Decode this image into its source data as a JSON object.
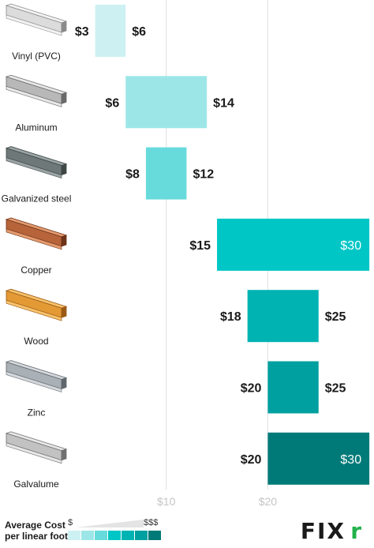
{
  "chart_data": {
    "type": "bar",
    "subtype": "floating-range",
    "categories": [
      "Vinyl (PVC)",
      "Aluminum",
      "Galvanized steel",
      "Copper",
      "Wood",
      "Zinc",
      "Galvalume"
    ],
    "series": [
      {
        "low": [
          3,
          6,
          8,
          15,
          18,
          20,
          20
        ],
        "high": [
          6,
          14,
          12,
          30,
          25,
          25,
          30
        ],
        "low_labels": [
          "$3",
          "$6",
          "$8",
          "$15",
          "$18",
          "$20",
          "$20"
        ],
        "high_labels": [
          "$6",
          "$14",
          "$12",
          "$30",
          "$25",
          "$25",
          "$30"
        ]
      }
    ],
    "bar_colors": [
      "#cdf1f2",
      "#9de6e7",
      "#67dbdc",
      "#00c6c6",
      "#00b3b3",
      "#00a0a0",
      "#007a78"
    ],
    "high_label_inside": [
      false,
      false,
      false,
      true,
      false,
      false,
      true
    ],
    "xlim": [
      -6.3,
      30
    ],
    "xticks": [
      10,
      20
    ],
    "xtick_labels": [
      "$10",
      "$20"
    ],
    "grid": true,
    "orientation": "horizontal"
  },
  "legend": {
    "title": "Average Cost per linear foot",
    "low_label": "$",
    "high_label": "$$$",
    "swatch_colors": [
      "#cdf1f2",
      "#9de6e7",
      "#67dbdc",
      "#00c6c6",
      "#00b3b3",
      "#00a0a0",
      "#007a78"
    ]
  },
  "logo": {
    "text": "FIX",
    "mark": "r"
  },
  "icons": [
    "vinyl-gutter-icon",
    "aluminum-gutter-icon",
    "galvanized-steel-gutter-icon",
    "copper-gutter-icon",
    "wood-gutter-icon",
    "zinc-gutter-icon",
    "galvalume-gutter-icon"
  ],
  "gutter_colors": [
    {
      "light": "#f2f2f2",
      "mid": "#dcdcdc",
      "dark": "#8a8a8a"
    },
    {
      "light": "#e8e8e8",
      "mid": "#b8b8b8",
      "dark": "#6a6a6a"
    },
    {
      "light": "#9aa3a3",
      "mid": "#6e7878",
      "dark": "#3f4646"
    },
    {
      "light": "#e39a6e",
      "mid": "#b8643a",
      "dark": "#6e3318"
    },
    {
      "light": "#f7c26a",
      "mid": "#e39a35",
      "dark": "#9a5a14"
    },
    {
      "light": "#d4d8dc",
      "mid": "#a9b0b6",
      "dark": "#5f666c"
    },
    {
      "light": "#e6e6e6",
      "mid": "#c2c2c2",
      "dark": "#707070"
    }
  ]
}
